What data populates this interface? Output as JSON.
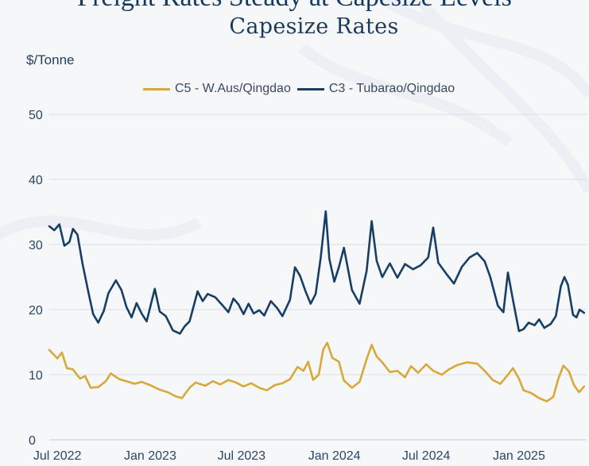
{
  "header": {
    "cut_title": "Freight Rates Steady at Capesize Levels"
  },
  "chart_data": {
    "type": "line",
    "title": "Capesize Rates",
    "ylabel": "$/Tonne",
    "xlabel": "",
    "ylim": [
      0,
      50
    ],
    "yticks": [
      0,
      10,
      20,
      30,
      40,
      50
    ],
    "x_tick_labels": [
      "Jul 2022",
      "Jan 2023",
      "Jul 2023",
      "Jan 2024",
      "Jul 2024",
      "Jan 2025"
    ],
    "x_tick_dates": [
      "2022-07-01",
      "2023-01-01",
      "2023-07-01",
      "2024-01-01",
      "2024-07-01",
      "2025-01-01"
    ],
    "xlim": [
      "2022-06-15",
      "2025-05-15"
    ],
    "grid": "horizontal",
    "legend_position": "top",
    "series": [
      {
        "name": "C5 - W.Aus/Qingdao",
        "color": "#d8a83a",
        "points": [
          [
            "2022-06-15",
            13.8
          ],
          [
            "2022-07-01",
            12.5
          ],
          [
            "2022-07-10",
            13.4
          ],
          [
            "2022-07-20",
            11.0
          ],
          [
            "2022-08-01",
            10.8
          ],
          [
            "2022-08-15",
            9.4
          ],
          [
            "2022-08-25",
            9.8
          ],
          [
            "2022-09-05",
            8.0
          ],
          [
            "2022-09-20",
            8.1
          ],
          [
            "2022-10-05",
            9.0
          ],
          [
            "2022-10-15",
            10.2
          ],
          [
            "2022-11-01",
            9.3
          ],
          [
            "2022-11-15",
            9.0
          ],
          [
            "2022-12-01",
            8.6
          ],
          [
            "2022-12-15",
            8.9
          ],
          [
            "2023-01-01",
            8.4
          ],
          [
            "2023-01-20",
            7.7
          ],
          [
            "2023-02-05",
            7.3
          ],
          [
            "2023-02-20",
            6.7
          ],
          [
            "2023-03-05",
            6.4
          ],
          [
            "2023-03-20",
            8.0
          ],
          [
            "2023-04-01",
            8.8
          ],
          [
            "2023-04-20",
            8.3
          ],
          [
            "2023-05-05",
            9.0
          ],
          [
            "2023-05-20",
            8.5
          ],
          [
            "2023-06-05",
            9.2
          ],
          [
            "2023-06-20",
            8.8
          ],
          [
            "2023-07-05",
            8.2
          ],
          [
            "2023-07-20",
            8.7
          ],
          [
            "2023-08-05",
            8.0
          ],
          [
            "2023-08-20",
            7.6
          ],
          [
            "2023-09-05",
            8.4
          ],
          [
            "2023-09-20",
            8.7
          ],
          [
            "2023-10-05",
            9.3
          ],
          [
            "2023-10-20",
            11.2
          ],
          [
            "2023-11-01",
            10.6
          ],
          [
            "2023-11-10",
            12.0
          ],
          [
            "2023-11-20",
            9.2
          ],
          [
            "2023-12-01",
            10.0
          ],
          [
            "2023-12-10",
            13.9
          ],
          [
            "2023-12-18",
            14.9
          ],
          [
            "2023-12-28",
            12.6
          ],
          [
            "2024-01-10",
            12.0
          ],
          [
            "2024-01-20",
            9.1
          ],
          [
            "2024-02-05",
            8.0
          ],
          [
            "2024-02-20",
            8.9
          ],
          [
            "2024-03-05",
            12.4
          ],
          [
            "2024-03-15",
            14.6
          ],
          [
            "2024-03-25",
            12.8
          ],
          [
            "2024-04-05",
            11.9
          ],
          [
            "2024-04-20",
            10.4
          ],
          [
            "2024-05-05",
            10.6
          ],
          [
            "2024-05-20",
            9.6
          ],
          [
            "2024-06-01",
            11.3
          ],
          [
            "2024-06-15",
            10.3
          ],
          [
            "2024-07-01",
            11.6
          ],
          [
            "2024-07-15",
            10.6
          ],
          [
            "2024-08-01",
            10.0
          ],
          [
            "2024-08-15",
            10.8
          ],
          [
            "2024-09-01",
            11.5
          ],
          [
            "2024-09-20",
            11.9
          ],
          [
            "2024-10-10",
            11.7
          ],
          [
            "2024-10-25",
            10.6
          ],
          [
            "2024-11-10",
            9.2
          ],
          [
            "2024-11-25",
            8.6
          ],
          [
            "2024-12-10",
            10.0
          ],
          [
            "2024-12-20",
            11.0
          ],
          [
            "2025-01-01",
            9.4
          ],
          [
            "2025-01-10",
            7.6
          ],
          [
            "2025-01-25",
            7.2
          ],
          [
            "2025-02-10",
            6.4
          ],
          [
            "2025-02-25",
            5.9
          ],
          [
            "2025-03-10",
            6.6
          ],
          [
            "2025-03-20",
            9.4
          ],
          [
            "2025-03-30",
            11.4
          ],
          [
            "2025-04-10",
            10.5
          ],
          [
            "2025-04-20",
            8.4
          ],
          [
            "2025-04-30",
            7.3
          ],
          [
            "2025-05-10",
            8.2
          ]
        ]
      },
      {
        "name": "C3 - Tubarao/Qingdao",
        "color": "#173f66",
        "points": [
          [
            "2022-06-15",
            32.8
          ],
          [
            "2022-06-25",
            32.2
          ],
          [
            "2022-07-05",
            33.1
          ],
          [
            "2022-07-15",
            29.8
          ],
          [
            "2022-07-25",
            30.4
          ],
          [
            "2022-08-01",
            32.4
          ],
          [
            "2022-08-10",
            31.5
          ],
          [
            "2022-08-20",
            27.0
          ],
          [
            "2022-09-01",
            22.5
          ],
          [
            "2022-09-10",
            19.3
          ],
          [
            "2022-09-20",
            18.0
          ],
          [
            "2022-10-01",
            19.8
          ],
          [
            "2022-10-10",
            22.5
          ],
          [
            "2022-10-25",
            24.5
          ],
          [
            "2022-11-05",
            23.0
          ],
          [
            "2022-11-15",
            20.4
          ],
          [
            "2022-11-25",
            18.8
          ],
          [
            "2022-12-05",
            21.0
          ],
          [
            "2022-12-15",
            19.4
          ],
          [
            "2022-12-25",
            18.2
          ],
          [
            "2023-01-10",
            23.2
          ],
          [
            "2023-01-20",
            19.7
          ],
          [
            "2023-02-01",
            19.0
          ],
          [
            "2023-02-15",
            16.8
          ],
          [
            "2023-03-01",
            16.3
          ],
          [
            "2023-03-10",
            17.4
          ],
          [
            "2023-03-20",
            18.2
          ],
          [
            "2023-04-05",
            22.8
          ],
          [
            "2023-04-15",
            21.3
          ],
          [
            "2023-04-25",
            22.4
          ],
          [
            "2023-05-10",
            21.9
          ],
          [
            "2023-05-25",
            20.6
          ],
          [
            "2023-06-05",
            19.6
          ],
          [
            "2023-06-15",
            21.7
          ],
          [
            "2023-06-25",
            20.8
          ],
          [
            "2023-07-05",
            19.3
          ],
          [
            "2023-07-15",
            20.9
          ],
          [
            "2023-07-25",
            19.4
          ],
          [
            "2023-08-05",
            19.9
          ],
          [
            "2023-08-15",
            19.1
          ],
          [
            "2023-08-28",
            21.3
          ],
          [
            "2023-09-10",
            20.2
          ],
          [
            "2023-09-20",
            19.0
          ],
          [
            "2023-10-05",
            21.5
          ],
          [
            "2023-10-15",
            26.5
          ],
          [
            "2023-10-25",
            25.2
          ],
          [
            "2023-11-05",
            22.8
          ],
          [
            "2023-11-15",
            20.9
          ],
          [
            "2023-11-25",
            22.4
          ],
          [
            "2023-12-05",
            28.0
          ],
          [
            "2023-12-15",
            35.1
          ],
          [
            "2023-12-22",
            27.8
          ],
          [
            "2024-01-01",
            24.3
          ],
          [
            "2024-01-10",
            26.5
          ],
          [
            "2024-01-20",
            29.5
          ],
          [
            "2024-02-05",
            23.0
          ],
          [
            "2024-02-20",
            20.9
          ],
          [
            "2024-03-05",
            26.0
          ],
          [
            "2024-03-15",
            33.6
          ],
          [
            "2024-03-25",
            27.5
          ],
          [
            "2024-04-05",
            25.0
          ],
          [
            "2024-04-20",
            27.1
          ],
          [
            "2024-05-05",
            24.9
          ],
          [
            "2024-05-20",
            27.0
          ],
          [
            "2024-06-05",
            26.2
          ],
          [
            "2024-06-20",
            26.8
          ],
          [
            "2024-07-05",
            28.0
          ],
          [
            "2024-07-15",
            32.6
          ],
          [
            "2024-07-25",
            27.2
          ],
          [
            "2024-08-10",
            25.5
          ],
          [
            "2024-08-25",
            24.0
          ],
          [
            "2024-09-10",
            26.6
          ],
          [
            "2024-09-25",
            28.0
          ],
          [
            "2024-10-10",
            28.7
          ],
          [
            "2024-10-25",
            27.4
          ],
          [
            "2024-11-05",
            25.0
          ],
          [
            "2024-11-20",
            20.6
          ],
          [
            "2024-12-01",
            19.6
          ],
          [
            "2024-12-10",
            25.7
          ],
          [
            "2024-12-20",
            21.5
          ],
          [
            "2025-01-01",
            16.7
          ],
          [
            "2025-01-10",
            17.0
          ],
          [
            "2025-01-20",
            18.0
          ],
          [
            "2025-02-01",
            17.6
          ],
          [
            "2025-02-10",
            18.5
          ],
          [
            "2025-02-20",
            17.2
          ],
          [
            "2025-03-05",
            17.8
          ],
          [
            "2025-03-15",
            19.0
          ],
          [
            "2025-03-25",
            23.6
          ],
          [
            "2025-04-01",
            25.0
          ],
          [
            "2025-04-08",
            23.8
          ],
          [
            "2025-04-18",
            19.2
          ],
          [
            "2025-04-25",
            18.8
          ],
          [
            "2025-05-01",
            20.0
          ],
          [
            "2025-05-10",
            19.5
          ]
        ]
      }
    ]
  }
}
